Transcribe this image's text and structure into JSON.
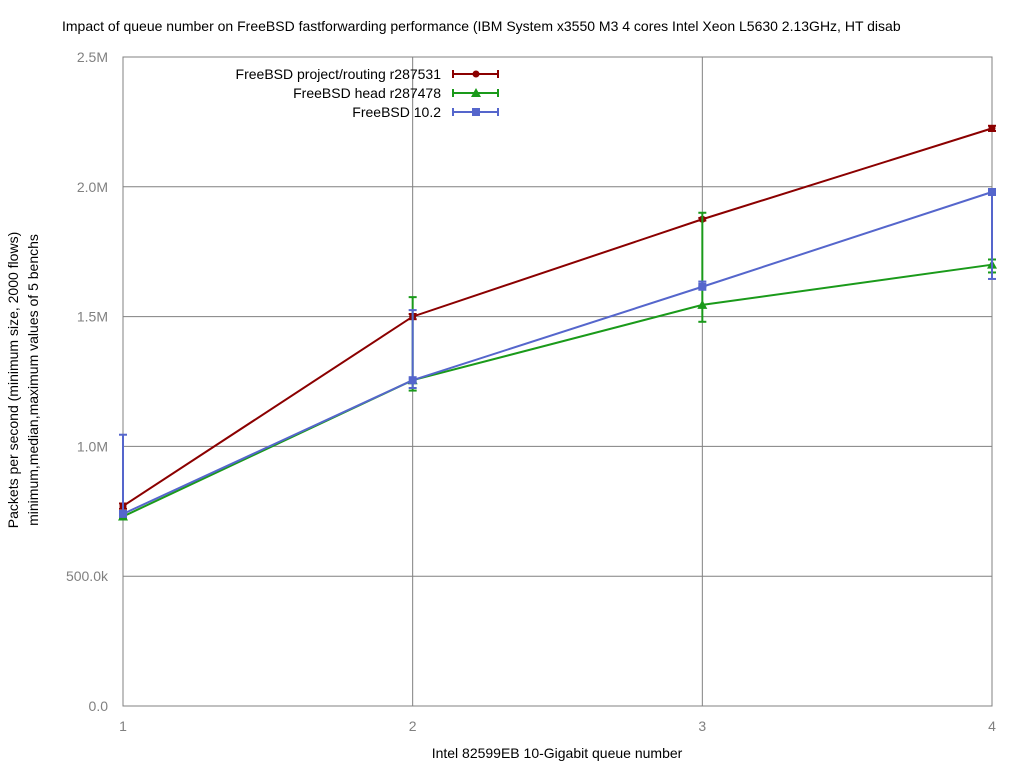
{
  "chart_data": {
    "type": "line",
    "title": "Impact of queue number on FreeBSD fastforwarding performance (IBM System x3550 M3 4 cores Intel Xeon L5630 2.13GHz, HT disab",
    "xlabel": "Intel 82599EB 10-Gigabit queue number",
    "ylabel": "Packets per second (minimum size, 2000 flows)",
    "ylabel2": "minimum,median,maximum values of 5 benchs",
    "x": [
      1,
      2,
      3,
      4
    ],
    "x_ticks": [
      "1",
      "2",
      "3",
      "4"
    ],
    "xlim": [
      1,
      4
    ],
    "ylim": [
      0,
      2500000
    ],
    "y_ticks": [
      {
        "value": 0,
        "label": "0.0"
      },
      {
        "value": 500000,
        "label": "500.0k"
      },
      {
        "value": 1000000,
        "label": "1.0M"
      },
      {
        "value": 1500000,
        "label": "1.5M"
      },
      {
        "value": 2000000,
        "label": "2.0M"
      },
      {
        "value": 2500000,
        "label": "2.5M"
      }
    ],
    "grid": true,
    "legend_position": "top-left",
    "series": [
      {
        "name": "FreeBSD project/routing r287531",
        "color": "#8b0000",
        "marker": "circle",
        "median": [
          770000,
          1500000,
          1875000,
          2225000
        ],
        "min": [
          760000,
          1490000,
          1870000,
          2215000
        ],
        "max": [
          780000,
          1510000,
          1880000,
          2235000
        ]
      },
      {
        "name": "FreeBSD head r287478",
        "color": "#1a9a1a",
        "marker": "triangle",
        "median": [
          730000,
          1255000,
          1545000,
          1700000
        ],
        "min": [
          725000,
          1215000,
          1480000,
          1670000
        ],
        "max": [
          740000,
          1575000,
          1900000,
          1720000
        ]
      },
      {
        "name": "FreeBSD 10.2",
        "color": "#5566cc",
        "marker": "square",
        "median": [
          740000,
          1255000,
          1615000,
          1980000
        ],
        "min": [
          730000,
          1225000,
          1615000,
          1645000
        ],
        "max": [
          1045000,
          1525000,
          1635000,
          1985000
        ]
      }
    ]
  }
}
